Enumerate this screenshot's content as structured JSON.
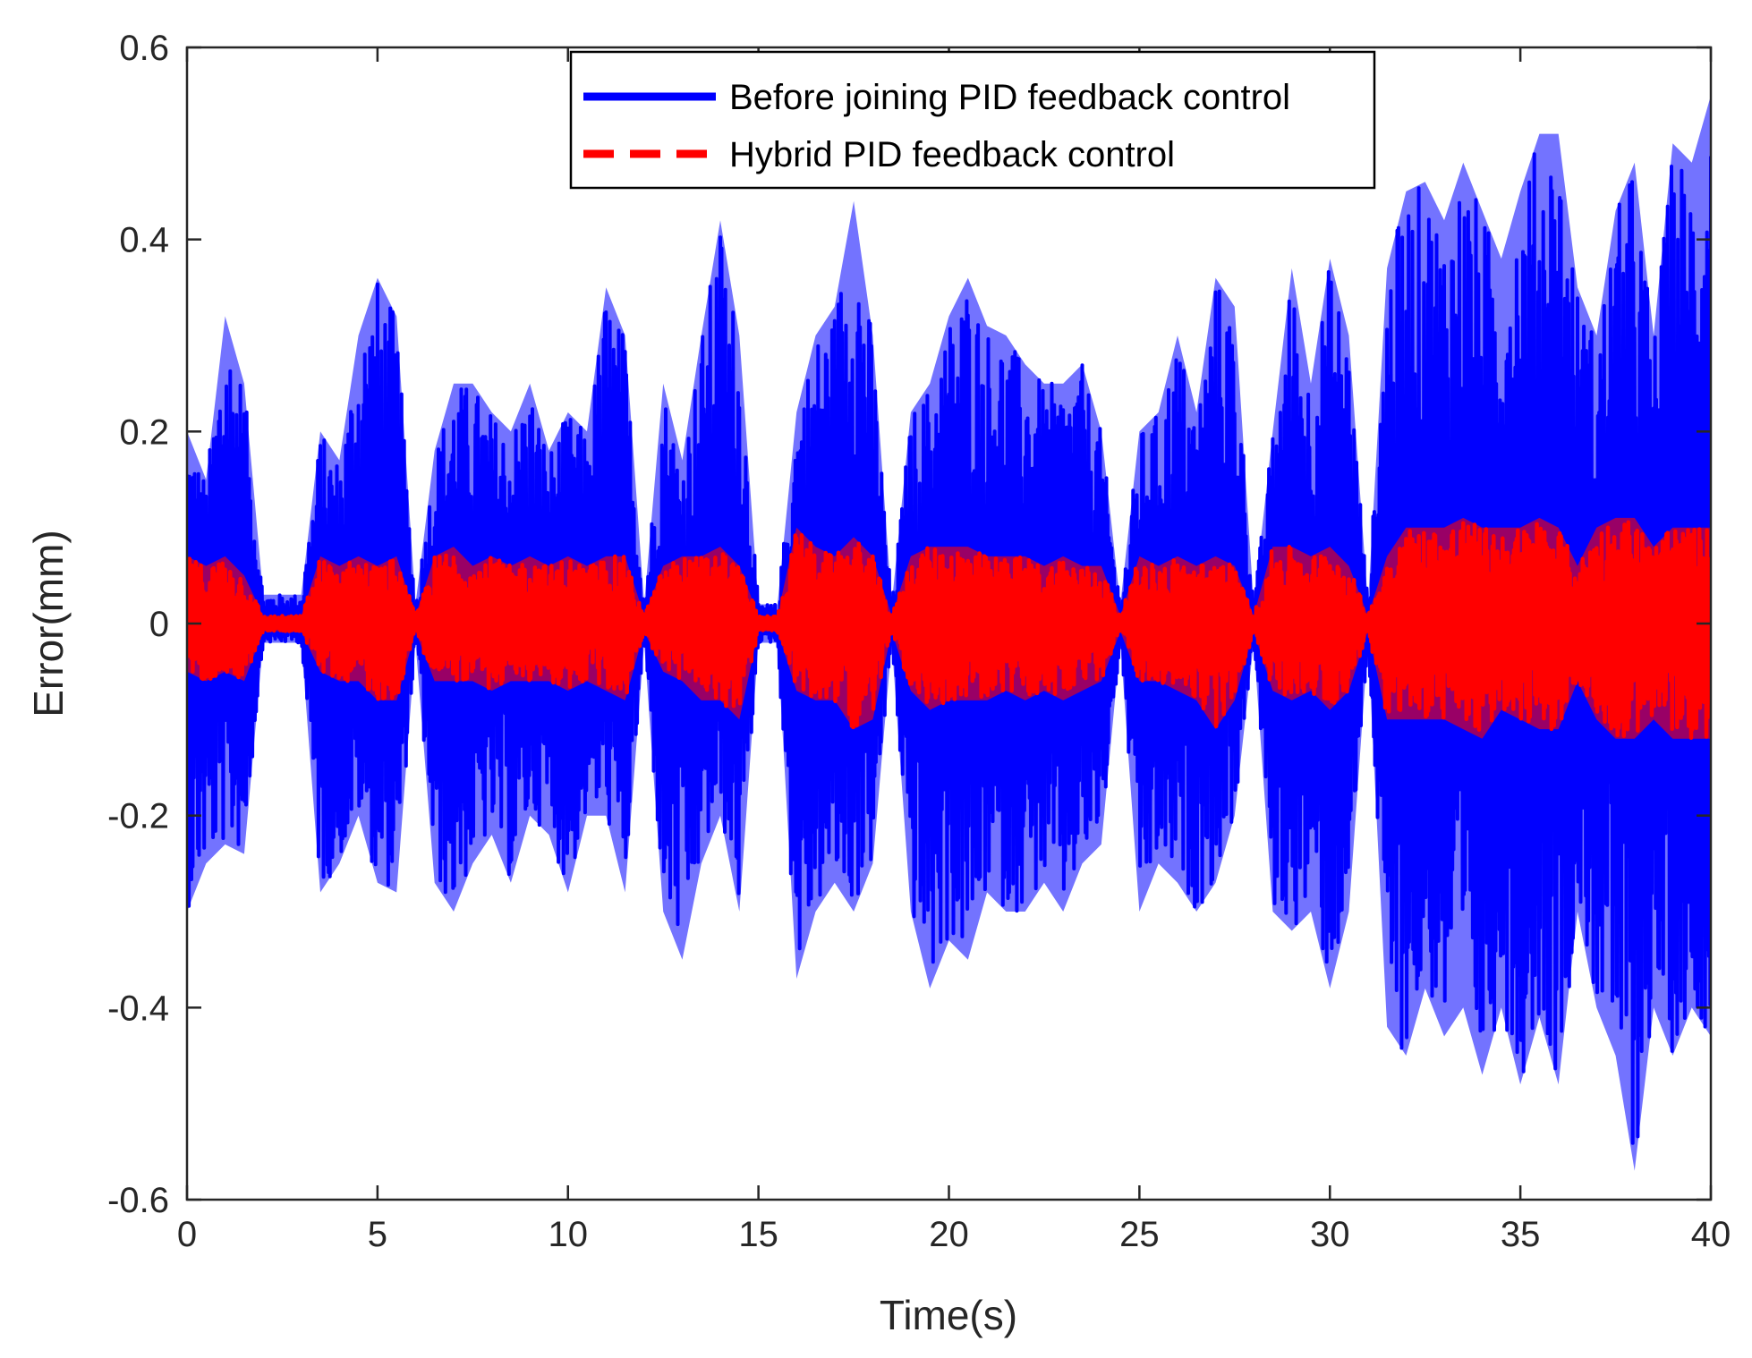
{
  "chart_data": {
    "type": "line",
    "title": "",
    "xlabel": "Time(s)",
    "ylabel": "Error(mm)",
    "xlim": [
      0,
      40
    ],
    "ylim": [
      -0.6,
      0.6
    ],
    "xticks": [
      0,
      5,
      10,
      15,
      20,
      25,
      30,
      35,
      40
    ],
    "yticks": [
      -0.6,
      -0.4,
      -0.2,
      0,
      0.2,
      0.4,
      0.6
    ],
    "xtick_labels": [
      "0",
      "5",
      "10",
      "15",
      "20",
      "25",
      "30",
      "35",
      "40"
    ],
    "ytick_labels": [
      "-0.6",
      "-0.4",
      "-0.2",
      "0",
      "0.2",
      "0.4",
      "0.6"
    ],
    "grid": false,
    "legend_position": "top-center",
    "series": [
      {
        "name": "Before joining PID feedback control",
        "color": "#0000ff",
        "style": "solid",
        "t": [
          0,
          0.5,
          1,
          1.5,
          2,
          2.5,
          3,
          3.5,
          4,
          4.5,
          5,
          5.5,
          6,
          6.5,
          7,
          7.5,
          8,
          8.5,
          9,
          9.5,
          10,
          10.5,
          11,
          11.5,
          12,
          12.5,
          13,
          13.5,
          14,
          14.5,
          15,
          15.5,
          16,
          16.5,
          17,
          17.5,
          18,
          18.5,
          19,
          19.5,
          20,
          20.5,
          21,
          21.5,
          22,
          22.5,
          23,
          23.5,
          24,
          24.5,
          25,
          25.5,
          26,
          26.5,
          27,
          27.5,
          28,
          28.5,
          29,
          29.5,
          30,
          30.5,
          31,
          31.5,
          32,
          32.5,
          33,
          33.5,
          34,
          34.5,
          35,
          35.5,
          36,
          36.5,
          37,
          37.5,
          38,
          38.5,
          39,
          39.5,
          40
        ],
        "upper": [
          0.2,
          0.15,
          0.32,
          0.25,
          0.03,
          0.03,
          0.03,
          0.2,
          0.17,
          0.3,
          0.36,
          0.32,
          0.02,
          0.18,
          0.25,
          0.25,
          0.22,
          0.2,
          0.25,
          0.18,
          0.22,
          0.2,
          0.35,
          0.3,
          0.02,
          0.25,
          0.17,
          0.3,
          0.42,
          0.3,
          0.02,
          0.02,
          0.22,
          0.3,
          0.33,
          0.44,
          0.3,
          0.02,
          0.22,
          0.25,
          0.32,
          0.36,
          0.31,
          0.3,
          0.27,
          0.25,
          0.25,
          0.27,
          0.2,
          0.02,
          0.2,
          0.22,
          0.3,
          0.22,
          0.36,
          0.33,
          0.02,
          0.2,
          0.37,
          0.25,
          0.38,
          0.3,
          0.02,
          0.37,
          0.45,
          0.46,
          0.42,
          0.48,
          0.43,
          0.38,
          0.45,
          0.51,
          0.51,
          0.35,
          0.3,
          0.43,
          0.48,
          0.3,
          0.5,
          0.48,
          0.55
        ],
        "lower": [
          -0.3,
          -0.25,
          -0.23,
          -0.24,
          -0.02,
          -0.02,
          -0.02,
          -0.28,
          -0.25,
          -0.2,
          -0.27,
          -0.28,
          -0.02,
          -0.27,
          -0.3,
          -0.25,
          -0.22,
          -0.27,
          -0.2,
          -0.22,
          -0.28,
          -0.2,
          -0.2,
          -0.28,
          -0.02,
          -0.3,
          -0.35,
          -0.25,
          -0.2,
          -0.3,
          -0.02,
          -0.02,
          -0.37,
          -0.3,
          -0.27,
          -0.3,
          -0.25,
          -0.02,
          -0.3,
          -0.38,
          -0.33,
          -0.35,
          -0.28,
          -0.3,
          -0.3,
          -0.27,
          -0.3,
          -0.25,
          -0.23,
          -0.02,
          -0.3,
          -0.25,
          -0.27,
          -0.3,
          -0.27,
          -0.2,
          -0.02,
          -0.3,
          -0.32,
          -0.3,
          -0.38,
          -0.3,
          -0.02,
          -0.42,
          -0.45,
          -0.38,
          -0.43,
          -0.4,
          -0.47,
          -0.4,
          -0.48,
          -0.41,
          -0.48,
          -0.3,
          -0.4,
          -0.45,
          -0.57,
          -0.4,
          -0.45,
          -0.4,
          -0.43
        ]
      },
      {
        "name": "Hybrid PID feedback control",
        "color": "#ff0000",
        "style": "dashed",
        "t": [
          0,
          0.5,
          1,
          1.5,
          2,
          2.5,
          3,
          3.5,
          4,
          4.5,
          5,
          5.5,
          6,
          6.5,
          7,
          7.5,
          8,
          8.5,
          9,
          9.5,
          10,
          10.5,
          11,
          11.5,
          12,
          12.5,
          13,
          13.5,
          14,
          14.5,
          15,
          15.5,
          16,
          16.5,
          17,
          17.5,
          18,
          18.5,
          19,
          19.5,
          20,
          20.5,
          21,
          21.5,
          22,
          22.5,
          23,
          23.5,
          24,
          24.5,
          25,
          25.5,
          26,
          26.5,
          27,
          27.5,
          28,
          28.5,
          29,
          29.5,
          30,
          30.5,
          31,
          31.5,
          32,
          32.5,
          33,
          33.5,
          34,
          34.5,
          35,
          35.5,
          36,
          36.5,
          37,
          37.5,
          38,
          38.5,
          39,
          39.5,
          40
        ],
        "upper": [
          0.07,
          0.06,
          0.07,
          0.05,
          0.008,
          0.008,
          0.008,
          0.07,
          0.06,
          0.07,
          0.06,
          0.07,
          0.008,
          0.07,
          0.08,
          0.06,
          0.07,
          0.06,
          0.07,
          0.06,
          0.07,
          0.06,
          0.07,
          0.07,
          0.008,
          0.06,
          0.07,
          0.07,
          0.08,
          0.06,
          0.008,
          0.008,
          0.1,
          0.08,
          0.07,
          0.09,
          0.07,
          0.008,
          0.07,
          0.08,
          0.08,
          0.08,
          0.07,
          0.07,
          0.07,
          0.06,
          0.07,
          0.06,
          0.06,
          0.008,
          0.07,
          0.06,
          0.07,
          0.06,
          0.07,
          0.06,
          0.008,
          0.08,
          0.08,
          0.07,
          0.08,
          0.06,
          0.008,
          0.07,
          0.1,
          0.1,
          0.1,
          0.11,
          0.1,
          0.1,
          0.1,
          0.11,
          0.1,
          0.06,
          0.1,
          0.11,
          0.11,
          0.08,
          0.1,
          0.1,
          0.1
        ],
        "lower": [
          -0.05,
          -0.06,
          -0.05,
          -0.06,
          -0.008,
          -0.008,
          -0.008,
          -0.05,
          -0.06,
          -0.06,
          -0.08,
          -0.08,
          -0.008,
          -0.06,
          -0.06,
          -0.06,
          -0.07,
          -0.06,
          -0.06,
          -0.06,
          -0.07,
          -0.06,
          -0.07,
          -0.08,
          -0.008,
          -0.05,
          -0.06,
          -0.08,
          -0.08,
          -0.1,
          -0.008,
          -0.008,
          -0.07,
          -0.08,
          -0.08,
          -0.11,
          -0.1,
          -0.008,
          -0.07,
          -0.09,
          -0.08,
          -0.08,
          -0.08,
          -0.07,
          -0.08,
          -0.07,
          -0.08,
          -0.07,
          -0.06,
          -0.008,
          -0.06,
          -0.06,
          -0.07,
          -0.08,
          -0.11,
          -0.08,
          -0.008,
          -0.07,
          -0.08,
          -0.07,
          -0.09,
          -0.07,
          -0.008,
          -0.1,
          -0.1,
          -0.1,
          -0.1,
          -0.11,
          -0.12,
          -0.09,
          -0.1,
          -0.11,
          -0.11,
          -0.06,
          -0.1,
          -0.12,
          -0.12,
          -0.1,
          -0.12,
          -0.12,
          -0.12
        ]
      }
    ]
  }
}
